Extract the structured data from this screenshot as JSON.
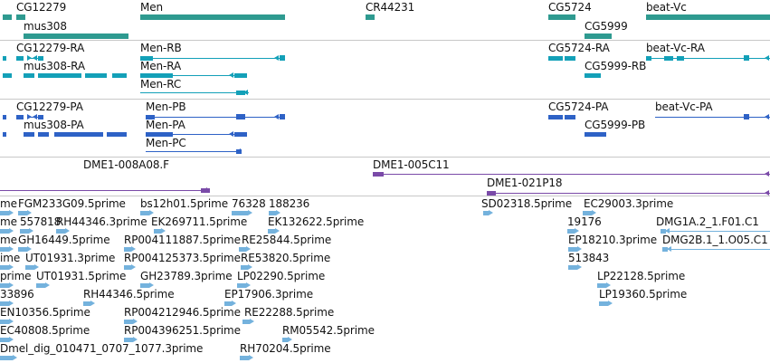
{
  "browser": {
    "tracks": [
      {
        "name": "gene-track",
        "color": "#2e9a90",
        "features": [
          {
            "label": "CG12279"
          },
          {
            "label": "mus308"
          },
          {
            "label": "Men"
          },
          {
            "label": "CR44231"
          },
          {
            "label": "CG5724"
          },
          {
            "label": "CG5999"
          },
          {
            "label": "beat-Vc"
          }
        ]
      },
      {
        "name": "transcript-track",
        "color": "#13a0b8",
        "features": [
          {
            "label": "CG12279-RA"
          },
          {
            "label": "mus308-RA"
          },
          {
            "label": "Men-RB"
          },
          {
            "label": "Men-RA"
          },
          {
            "label": "Men-RC"
          },
          {
            "label": "CG5724-RA"
          },
          {
            "label": "CG5999-RB"
          },
          {
            "label": "beat-Vc-RA"
          }
        ]
      },
      {
        "name": "protein-track",
        "color": "#2e62c6",
        "features": [
          {
            "label": "CG12279-PA"
          },
          {
            "label": "mus308-PA"
          },
          {
            "label": "Men-PB"
          },
          {
            "label": "Men-PA"
          },
          {
            "label": "Men-PC"
          },
          {
            "label": "CG5724-PA"
          },
          {
            "label": "CG5999-PB"
          },
          {
            "label": "beat-Vc-PA"
          }
        ]
      },
      {
        "name": "clone-track",
        "color": "#7a4aa8",
        "features": [
          {
            "label": "DME1-008A08.F"
          },
          {
            "label": "DME1-005C11"
          },
          {
            "label": "DME1-021P18"
          }
        ]
      },
      {
        "name": "est-track",
        "color": "#74b2dd",
        "features": [
          {
            "label": "me"
          },
          {
            "label": "FGM233G09.5prime"
          },
          {
            "label": "bs12h01.5prime"
          },
          {
            "label": "76328"
          },
          {
            "label": "188236"
          },
          {
            "label": "SD02318.5prime"
          },
          {
            "label": "EC29003.3prime"
          },
          {
            "label": "me"
          },
          {
            "label": "557818"
          },
          {
            "label": "RH44346.3prime"
          },
          {
            "label": "EK269711.5prime"
          },
          {
            "label": "EK132622.5prime"
          },
          {
            "label": "19176"
          },
          {
            "label": "DMG1A.2_1.F01.C1"
          },
          {
            "label": "me"
          },
          {
            "label": "GH16449.5prime"
          },
          {
            "label": "RP004111887.5prime"
          },
          {
            "label": "RE25844.5prime"
          },
          {
            "label": "EP18210.3prime"
          },
          {
            "label": "DMG2B.1_1.O05.C1"
          },
          {
            "label": "ime"
          },
          {
            "label": "UT01931.3prime"
          },
          {
            "label": "RP004125373.5prime"
          },
          {
            "label": "RE53820.5prime"
          },
          {
            "label": "513843"
          },
          {
            "label": "prime"
          },
          {
            "label": "UT01931.5prime"
          },
          {
            "label": "GH23789.3prime"
          },
          {
            "label": "LP02290.5prime"
          },
          {
            "label": "LP22128.5prime"
          },
          {
            "label": "33896"
          },
          {
            "label": "RH44346.5prime"
          },
          {
            "label": "EP17906.3prime"
          },
          {
            "label": "LP19360.5prime"
          },
          {
            "label": "EN10356.5prime"
          },
          {
            "label": "RP004212946.5prime"
          },
          {
            "label": "RE22288.5prime"
          },
          {
            "label": "EC40808.5prime"
          },
          {
            "label": "RP004396251.5prime"
          },
          {
            "label": "RM05542.5prime"
          },
          {
            "label": "Dmel_dig_010471_0707_1077.3prime"
          },
          {
            "label": "RH70204.5prime"
          }
        ]
      }
    ]
  }
}
